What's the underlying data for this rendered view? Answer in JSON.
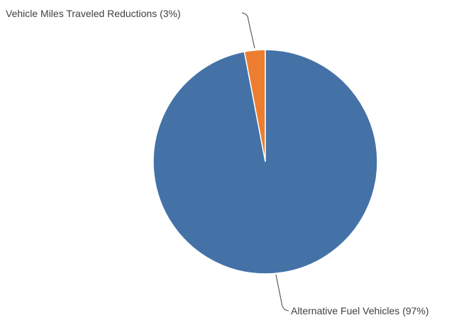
{
  "chart_data": {
    "type": "pie",
    "title": "",
    "colors": {
      "background": "#ffffff",
      "leader_line": "#404040",
      "slice_border": "#ffffff"
    },
    "legend": "none",
    "slices": [
      {
        "label": "Vehicle Miles Traveled Reductions",
        "value": 3,
        "display": "Vehicle Miles Traveled Reductions (3%)",
        "color": "#ED7D31"
      },
      {
        "label": "Alternative Fuel Vehicles",
        "value": 97,
        "display": "Alternative Fuel Vehicles (97%)",
        "color": "#4472A7"
      }
    ]
  }
}
